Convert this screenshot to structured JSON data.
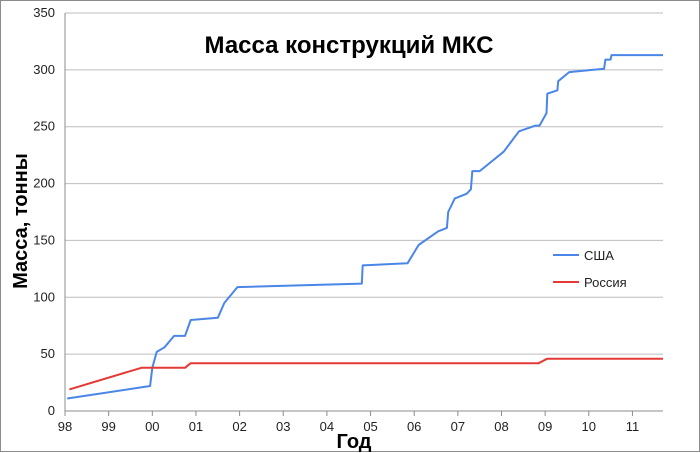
{
  "chart_data": {
    "type": "line",
    "title": "Масса конструкций МКС",
    "xlabel": "Год",
    "ylabel": "Масса, тонны",
    "xlim": [
      1998,
      2011.7
    ],
    "ylim": [
      0,
      350
    ],
    "yticks": [
      0,
      50,
      100,
      150,
      200,
      250,
      300,
      350
    ],
    "xticks": [
      {
        "value": 1998,
        "label": "98"
      },
      {
        "value": 1999,
        "label": "99"
      },
      {
        "value": 2000,
        "label": "00"
      },
      {
        "value": 2001,
        "label": "01"
      },
      {
        "value": 2002,
        "label": "02"
      },
      {
        "value": 2003,
        "label": "03"
      },
      {
        "value": 2004,
        "label": "04"
      },
      {
        "value": 2005,
        "label": "05"
      },
      {
        "value": 2006,
        "label": "06"
      },
      {
        "value": 2007,
        "label": "07"
      },
      {
        "value": 2008,
        "label": "08"
      },
      {
        "value": 2009,
        "label": "09"
      },
      {
        "value": 2010,
        "label": "10"
      },
      {
        "value": 2011,
        "label": "11"
      }
    ],
    "grid": true,
    "legend_position": "right",
    "series": [
      {
        "name": "США",
        "color": "#4a86e8",
        "points": [
          [
            1998.05,
            11
          ],
          [
            1999.95,
            22
          ],
          [
            2000.0,
            38
          ],
          [
            2000.1,
            52
          ],
          [
            2000.28,
            56
          ],
          [
            2000.5,
            66
          ],
          [
            2000.75,
            66
          ],
          [
            2000.88,
            80
          ],
          [
            2001.5,
            82
          ],
          [
            2001.65,
            95
          ],
          [
            2001.95,
            109
          ],
          [
            2004.8,
            112
          ],
          [
            2004.82,
            128
          ],
          [
            2005.85,
            130
          ],
          [
            2006.1,
            146
          ],
          [
            2006.55,
            158
          ],
          [
            2006.75,
            161
          ],
          [
            2006.78,
            175
          ],
          [
            2006.93,
            187
          ],
          [
            2007.2,
            191
          ],
          [
            2007.3,
            195
          ],
          [
            2007.33,
            211
          ],
          [
            2007.5,
            211
          ],
          [
            2008.05,
            228
          ],
          [
            2008.4,
            246
          ],
          [
            2008.78,
            251
          ],
          [
            2008.87,
            251
          ],
          [
            2009.03,
            262
          ],
          [
            2009.05,
            279
          ],
          [
            2009.28,
            282
          ],
          [
            2009.3,
            290
          ],
          [
            2009.55,
            298
          ],
          [
            2010.35,
            301
          ],
          [
            2010.38,
            309
          ],
          [
            2010.5,
            309
          ],
          [
            2010.52,
            313
          ],
          [
            2011.7,
            313
          ]
        ]
      },
      {
        "name": "Россия",
        "color": "#e53935",
        "points": [
          [
            1998.1,
            19
          ],
          [
            1999.75,
            38
          ],
          [
            2000.75,
            38
          ],
          [
            2000.88,
            42
          ],
          [
            2008.85,
            42
          ],
          [
            2009.05,
            46
          ],
          [
            2011.7,
            46
          ]
        ]
      }
    ]
  }
}
